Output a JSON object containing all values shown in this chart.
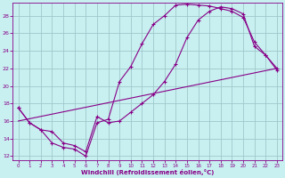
{
  "xlabel": "Windchill (Refroidissement éolien,°C)",
  "bg_color": "#c8f0f0",
  "grid_color": "#a0c8cc",
  "line_color": "#880088",
  "xlim": [
    -0.5,
    23.5
  ],
  "ylim": [
    11.5,
    29.5
  ],
  "xticks": [
    0,
    1,
    2,
    3,
    4,
    5,
    6,
    7,
    8,
    9,
    10,
    11,
    12,
    13,
    14,
    15,
    16,
    17,
    18,
    19,
    20,
    21,
    22,
    23
  ],
  "yticks": [
    12,
    14,
    16,
    18,
    20,
    22,
    24,
    26,
    28
  ],
  "line1_x": [
    0,
    1,
    2,
    3,
    4,
    5,
    6,
    7,
    8,
    9,
    10,
    11,
    12,
    13,
    14,
    15,
    16,
    17,
    18,
    19,
    20,
    21,
    22,
    23
  ],
  "line1_y": [
    17.5,
    15.8,
    15.0,
    13.5,
    13.0,
    12.8,
    12.0,
    15.8,
    16.2,
    20.5,
    22.2,
    24.8,
    27.0,
    28.0,
    29.2,
    29.3,
    29.2,
    29.1,
    28.8,
    28.5,
    27.8,
    25.0,
    23.5,
    21.8
  ],
  "line2_x": [
    0,
    1,
    2,
    3,
    4,
    5,
    6,
    7,
    8,
    9,
    10,
    11,
    12,
    13,
    14,
    15,
    16,
    17,
    18,
    19,
    20,
    21,
    22,
    23
  ],
  "line2_y": [
    17.5,
    15.8,
    15.0,
    14.8,
    13.5,
    13.2,
    12.5,
    16.5,
    15.8,
    16.0,
    17.0,
    18.0,
    19.0,
    20.5,
    22.5,
    25.5,
    27.5,
    28.5,
    29.0,
    28.8,
    28.2,
    24.5,
    23.5,
    22.0
  ],
  "line3_x": [
    0,
    23
  ],
  "line3_y": [
    16.0,
    22.0
  ]
}
